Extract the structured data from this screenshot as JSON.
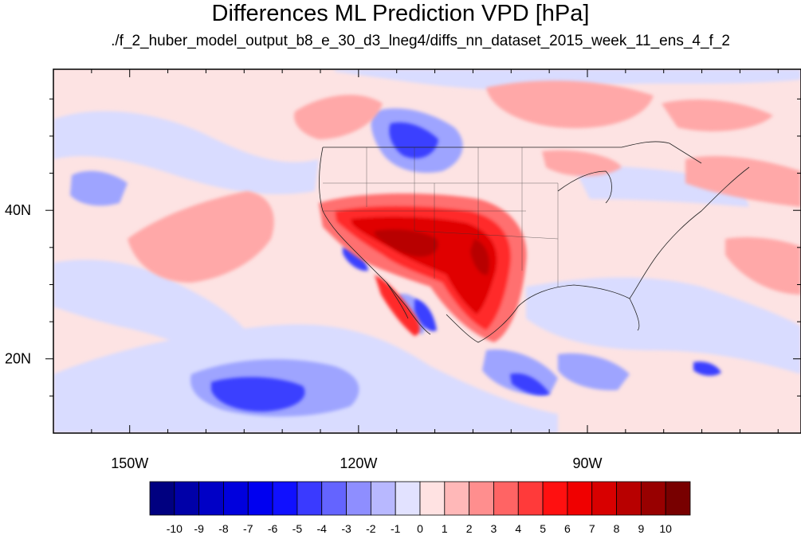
{
  "title": "Differences ML Prediction VPD [hPa]",
  "subtitle": "./f_2_huber_model_output_b8_e_30_d3_lneg4/diffs_nn_dataset_2015_week_11_ens_4_f_2",
  "map": {
    "lon_range": [
      -160,
      -62
    ],
    "lat_range": [
      10,
      59
    ],
    "lon_ticks": [
      {
        "value": -150,
        "label": "150W"
      },
      {
        "value": -120,
        "label": "120W"
      },
      {
        "value": -90,
        "label": "90W"
      }
    ],
    "lat_ticks": [
      {
        "value": 40,
        "label": "40N"
      },
      {
        "value": 20,
        "label": "20N"
      }
    ]
  },
  "colorbar": {
    "labels": [
      "-10",
      "-9",
      "-8",
      "-7",
      "-6",
      "-5",
      "-4",
      "-3",
      "-2",
      "-1",
      "0",
      "1",
      "2",
      "3",
      "4",
      "5",
      "6",
      "7",
      "8",
      "9",
      "10"
    ],
    "colors": [
      "#000080",
      "#0000a8",
      "#0000c6",
      "#0000dd",
      "#0000f0",
      "#1010ff",
      "#3a3aff",
      "#6464ff",
      "#8e8eff",
      "#b8b8ff",
      "#e2e2ff",
      "#ffe2e2",
      "#ffb8b8",
      "#ff8e8e",
      "#ff6464",
      "#ff3a3a",
      "#ff1010",
      "#f00000",
      "#d80000",
      "#b80000",
      "#980000",
      "#780000"
    ]
  }
}
